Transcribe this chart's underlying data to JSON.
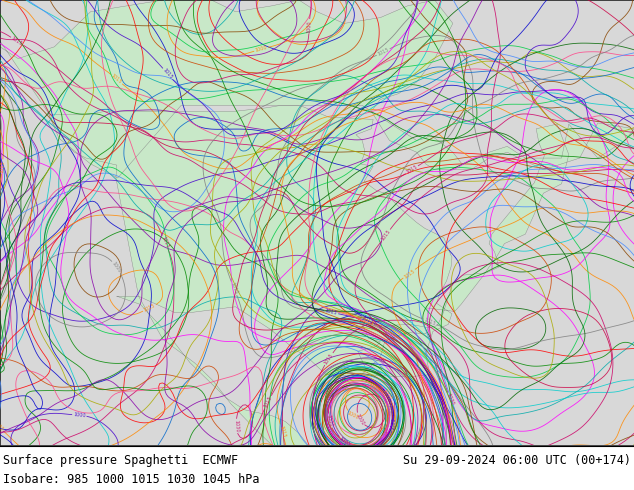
{
  "title_left": "Surface pressure Spaghetti  ECMWF",
  "title_right": "Su 29-09-2024 06:00 UTC (00+174)",
  "subtitle": "Isobare: 985 1000 1015 1030 1045 hPa",
  "bg_color": "#ffffff",
  "land_color": "#c8e8c8",
  "ocean_color": "#d8d8d8",
  "mountain_color": "#b0c8b0",
  "title_fontsize": 8.5,
  "subtitle_fontsize": 8.5,
  "figsize": [
    6.34,
    4.9
  ],
  "dpi": 100,
  "extent_lon": [
    -130,
    -60
  ],
  "extent_lat": [
    20,
    58
  ],
  "ensemble_colors": [
    "#808080",
    "#ff00ff",
    "#0000cd",
    "#ff0000",
    "#008800",
    "#ff8800",
    "#00cccc",
    "#8800aa",
    "#aaaa00",
    "#006600",
    "#cc0066",
    "#0066cc",
    "#884400",
    "#00aaaa",
    "#cc4400",
    "#4400cc",
    "#00cc44",
    "#cc0044",
    "#4488ff",
    "#ff4488"
  ],
  "isobar_levels": [
    985,
    1000,
    1015,
    1030,
    1045
  ],
  "n_members": 51
}
